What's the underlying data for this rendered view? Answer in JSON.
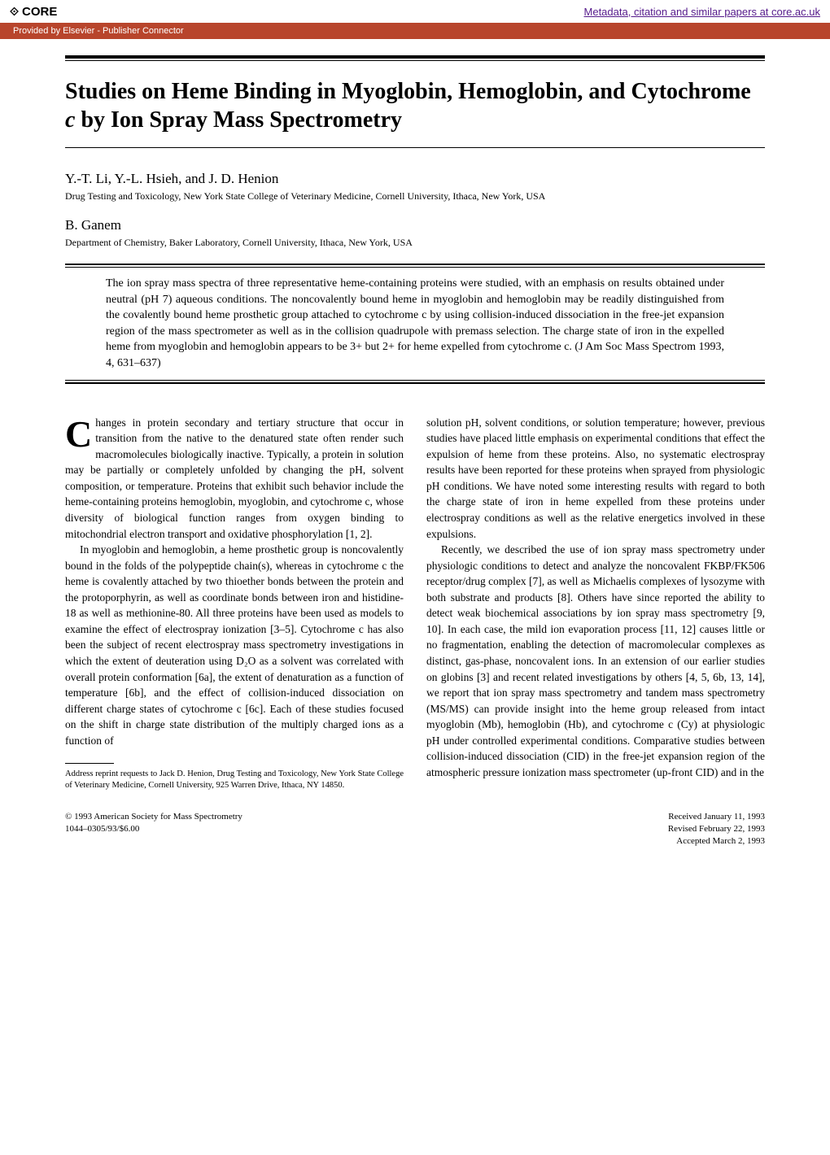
{
  "header": {
    "core_label": "CORE",
    "metadata_link": "Metadata, citation and similar papers at core.ac.uk",
    "provider_text": "Provided by Elsevier - Publisher Connector"
  },
  "title": "Studies on Heme Binding in Myoglobin, Hemoglobin, and Cytochrome c by Ion Spray Mass Spectrometry",
  "authors": [
    {
      "names": "Y.-T. Li, Y.-L. Hsieh, and J. D. Henion",
      "affiliation": "Drug Testing and Toxicology, New York State College of Veterinary Medicine, Cornell University, Ithaca, New York, USA"
    },
    {
      "names": "B. Ganem",
      "affiliation": "Department of Chemistry, Baker Laboratory, Cornell University, Ithaca, New York, USA"
    }
  ],
  "abstract": "The ion spray mass spectra of three representative heme-containing proteins were studied, with an emphasis on results obtained under neutral (pH 7) aqueous conditions. The noncovalently bound heme in myoglobin and hemoglobin may be readily distinguished from the covalently bound heme prosthetic group attached to cytochrome c by using collision-induced dissociation in the free-jet expansion region of the mass spectrometer as well as in the collision quadrupole with premass selection. The charge state of iron in the expelled heme from myoglobin and hemoglobin appears to be 3+ but 2+ for heme expelled from cytochrome c. (J Am Soc Mass Spectrom 1993, 4, 631–637)",
  "body": {
    "col1_para1": "hanges in protein secondary and tertiary structure that occur in transition from the native to the denatured state often render such macromolecules biologically inactive. Typically, a protein in solution may be partially or completely unfolded by changing the pH, solvent composition, or temperature. Proteins that exhibit such behavior include the heme-containing proteins hemoglobin, myoglobin, and cytochrome c, whose diversity of biological function ranges from oxygen binding to mitochondrial electron transport and oxidative phosphorylation [1, 2].",
    "col1_para2": "In myoglobin and hemoglobin, a heme prosthetic group is noncovalently bound in the folds of the polypeptide chain(s), whereas in cytochrome c the heme is covalently attached by two thioether bonds between the protein and the protoporphyrin, as well as coordinate bonds between iron and histidine-18 as well as methionine-80. All three proteins have been used as models to examine the effect of electrospray ionization [3–5]. Cytochrome c has also been the subject of recent electrospray mass spectrometry investigations in which the extent of deuteration using D₂O as a solvent was correlated with overall protein conformation [6a], the extent of denaturation as a function of temperature [6b], and the effect of collision-induced dissociation on different charge states of cytochrome c [6c]. Each of these studies focused on the shift in charge state distribution of the multiply charged ions as a function of",
    "col2_para1": "solution pH, solvent conditions, or solution temperature; however, previous studies have placed little emphasis on experimental conditions that effect the expulsion of heme from these proteins. Also, no systematic electrospray results have been reported for these proteins when sprayed from physiologic pH conditions. We have noted some interesting results with regard to both the charge state of iron in heme expelled from these proteins under electrospray conditions as well as the relative energetics involved in these expulsions.",
    "col2_para2": "Recently, we described the use of ion spray mass spectrometry under physiologic conditions to detect and analyze the noncovalent FKBP/FK506 receptor/drug complex [7], as well as Michaelis complexes of lysozyme with both substrate and products [8]. Others have since reported the ability to detect weak biochemical associations by ion spray mass spectrometry [9, 10]. In each case, the mild ion evaporation process [11, 12] causes little or no fragmentation, enabling the detection of macromolecular complexes as distinct, gas-phase, noncovalent ions. In an extension of our earlier studies on globins [3] and recent related investigations by others [4, 5, 6b, 13, 14], we report that ion spray mass spectrometry and tandem mass spectrometry (MS/MS) can provide insight into the heme group released from intact myoglobin (Mb), hemoglobin (Hb), and cytochrome c (Cy) at physiologic pH under controlled experimental conditions. Comparative studies between collision-induced dissociation (CID) in the free-jet expansion region of the atmospheric pressure ionization mass spectrometer (up-front CID) and in the"
  },
  "footnote": "Address reprint requests to Jack D. Henion, Drug Testing and Toxicology, New York State College of Veterinary Medicine, Cornell University, 925 Warren Drive, Ithaca, NY 14850.",
  "footer": {
    "copyright": "© 1993 American Society for Mass Spectrometry",
    "issn": "1044–0305/93/$6.00",
    "received": "Received January 11, 1993",
    "revised": "Revised February 22, 1993",
    "accepted": "Accepted March 2, 1993"
  },
  "colors": {
    "provider_bg": "#b8452c",
    "link_color": "#551a8b",
    "text_color": "#000000",
    "bg_color": "#ffffff"
  }
}
